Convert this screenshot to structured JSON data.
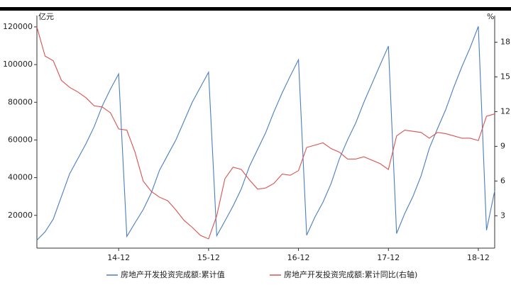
{
  "chart_data": {
    "type": "line",
    "y_unit": "亿元",
    "y2_unit": "%",
    "categories": [
      null,
      null,
      null,
      null,
      null,
      null,
      null,
      null,
      null,
      null,
      "14-12",
      null,
      null,
      null,
      null,
      null,
      null,
      null,
      null,
      null,
      null,
      "15-12",
      null,
      null,
      null,
      null,
      null,
      null,
      null,
      null,
      null,
      null,
      "16-12",
      null,
      null,
      null,
      null,
      null,
      null,
      null,
      null,
      null,
      null,
      "17-12",
      null,
      null,
      null,
      null,
      null,
      null,
      null,
      null,
      null,
      null,
      "18-12",
      null,
      null
    ],
    "series": [
      {
        "name": "房地产开发投资完成额:累计值",
        "color": "#4a7ebf",
        "axis": "y",
        "values": [
          6843,
          11226,
          18000,
          30000,
          42019,
          50000,
          58000,
          67000,
          78107,
          87000,
          95036,
          8786,
          16000,
          23000,
          32000,
          43955,
          52000,
          60000,
          70000,
          80000,
          88000,
          95979,
          9186,
          17000,
          25000,
          34000,
          46000,
          55000,
          64000,
          75000,
          85000,
          94000,
          102581,
          9478,
          19000,
          27000,
          37000,
          50000,
          60000,
          69000,
          80000,
          90000,
          100000,
          109799,
          10357,
          21000,
          30000,
          41000,
          55531,
          66000,
          76000,
          88000,
          99000,
          109000,
          120264,
          12090,
          33000
        ]
      },
      {
        "name": "房地产开发投资完成额:累计同比(右轴)",
        "color": "#d9534f",
        "axis": "y2",
        "values": [
          19.3,
          16.8,
          16.4,
          14.7,
          14.1,
          13.7,
          13.2,
          12.5,
          12.4,
          11.9,
          10.5,
          10.4,
          8.5,
          6.0,
          5.1,
          4.6,
          4.3,
          3.5,
          2.6,
          2.0,
          1.3,
          1.0,
          3.0,
          6.2,
          7.2,
          7.0,
          6.1,
          5.3,
          5.4,
          5.8,
          6.6,
          6.5,
          6.9,
          8.9,
          9.1,
          9.3,
          8.8,
          8.5,
          7.9,
          7.9,
          8.1,
          7.8,
          7.5,
          7.0,
          9.9,
          10.4,
          10.3,
          10.2,
          9.7,
          10.2,
          10.1,
          9.9,
          9.7,
          9.7,
          9.5,
          11.6,
          11.8
        ]
      }
    ],
    "ylim": [
      2600,
      126000
    ],
    "yticks": [
      20000,
      40000,
      60000,
      80000,
      100000,
      120000
    ],
    "y2lim": [
      0.2,
      20.3
    ],
    "y2ticks": [
      3,
      6,
      9,
      12,
      15,
      18
    ]
  }
}
